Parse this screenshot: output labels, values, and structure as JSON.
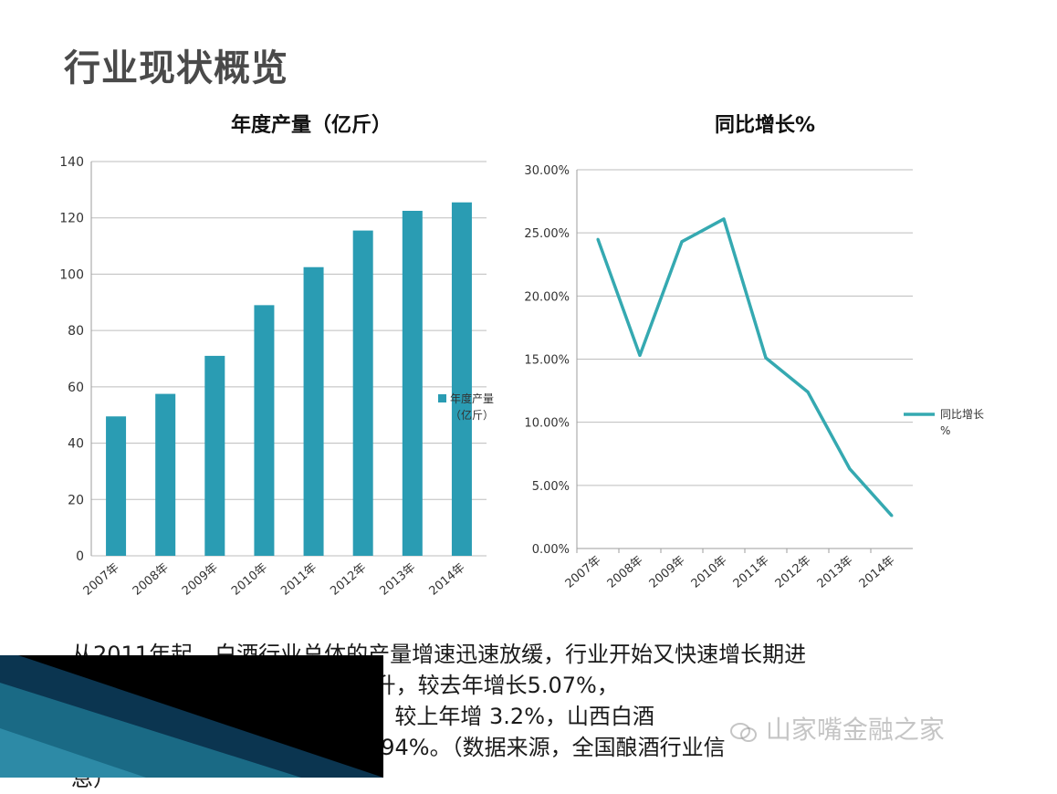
{
  "page": {
    "title": "行业现状概览"
  },
  "chart_data": [
    {
      "type": "bar",
      "title": "年度产量（亿斤）",
      "categories": [
        "2007年",
        "2008年",
        "2009年",
        "2010年",
        "2011年",
        "2012年",
        "2013年",
        "2014年"
      ],
      "series": [
        {
          "name": "年度产量（亿斤）",
          "values": [
            49.5,
            57.5,
            71,
            89,
            102.5,
            115.5,
            122.5,
            125.5
          ]
        }
      ],
      "ylim": [
        0,
        140
      ],
      "yticks": [
        "0",
        "20",
        "40",
        "60",
        "80",
        "100",
        "120",
        "140"
      ],
      "grid": true,
      "legend": "right",
      "color": "#2a9cb3"
    },
    {
      "type": "line",
      "title": "同比增长%",
      "categories": [
        "2007年",
        "2008年",
        "2009年",
        "2010年",
        "2011年",
        "2012年",
        "2013年",
        "2014年"
      ],
      "series": [
        {
          "name": "同比增长%",
          "values": [
            24.5,
            15.3,
            24.3,
            26.1,
            15.1,
            12.4,
            6.3,
            2.6
          ]
        }
      ],
      "ylim": [
        0,
        30
      ],
      "yticks": [
        "0.00%",
        "5.00%",
        "10.00%",
        "15.00%",
        "20.00%",
        "25.00%",
        "30.00%"
      ],
      "grid": true,
      "legend": "right",
      "color": "#35a9b1"
    }
  ],
  "paragraph": {
    "line1": "从2011年起，白酒行业总体的产量增速迅速放缓，行业开始又快速增长期进",
    "line2": "入成熟 计白酒产量1312.8万千升，较去年增长5.07%，",
    "line3": "营业收入55 较上年增长5.22%，较上年增 3.2%，山西白酒",
    "line4": "累计产量8.36万千升 年减少10.94%。（数据来源，全国酿酒行业信",
    "line5": "息）"
  },
  "watermark": {
    "text": "山家嘴金融之家"
  },
  "colors": {
    "accent_dark": "#0b3550",
    "accent_teal": "#1a6a85",
    "bar": "#2a9cb3",
    "line": "#35a9b1"
  }
}
